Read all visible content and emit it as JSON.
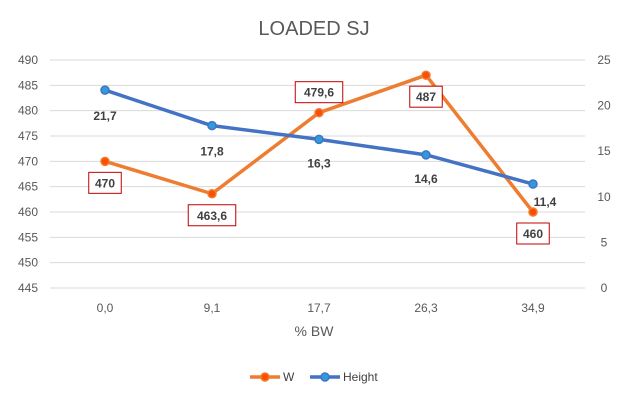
{
  "chart_data": {
    "type": "line",
    "title": "LOADED SJ",
    "xlabel": "% BW",
    "ylabel": "",
    "categories": [
      "0,0",
      "9,1",
      "17,7",
      "26,3",
      "34,9"
    ],
    "left_axis": {
      "ylim": [
        445,
        490
      ],
      "ticks": [
        "445",
        "450",
        "455",
        "460",
        "465",
        "470",
        "475",
        "480",
        "485",
        "490"
      ]
    },
    "right_axis": {
      "ylim": [
        0,
        25
      ],
      "ticks": [
        "0",
        "5",
        "10",
        "15",
        "20",
        "25"
      ]
    },
    "series": [
      {
        "name": "W",
        "axis": "left",
        "color": "#ed7d31",
        "marker_fill": "#ff4d00",
        "values": [
          470,
          463.6,
          479.6,
          487,
          460
        ],
        "labels": [
          "470",
          "463,6",
          "479,6",
          "487",
          "460"
        ]
      },
      {
        "name": "Height",
        "axis": "right",
        "color": "#4472c4",
        "marker_fill": "#2e9cdb",
        "values": [
          21.7,
          17.8,
          16.3,
          14.6,
          11.4
        ],
        "labels": [
          "21,7",
          "17,8",
          "16,3",
          "14,6",
          "11,4"
        ]
      }
    ],
    "grid": true,
    "legend": "bottom"
  }
}
